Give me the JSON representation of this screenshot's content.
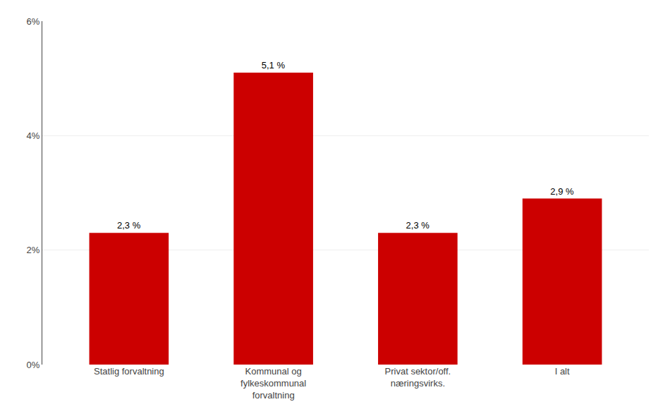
{
  "chart_data": {
    "type": "bar",
    "categories": [
      "Statlig forvaltning",
      "Kommunal og\nfylkeskommunal\nforvaltning",
      "Privat sektor/off.\nnæringsvirks.",
      "I alt"
    ],
    "values": [
      2.3,
      5.1,
      2.3,
      2.9
    ],
    "value_labels": [
      "2,3 %",
      "5,1 %",
      "2,3 %",
      "2,9 %"
    ],
    "data_labels": true,
    "color": "#cc0000",
    "ylim": [
      0,
      6
    ],
    "yticks": [
      {
        "value": 0,
        "label": "0%"
      },
      {
        "value": 2,
        "label": "2%"
      },
      {
        "value": 4,
        "label": "4%"
      },
      {
        "value": 6,
        "label": "6%"
      }
    ],
    "grid": true
  }
}
